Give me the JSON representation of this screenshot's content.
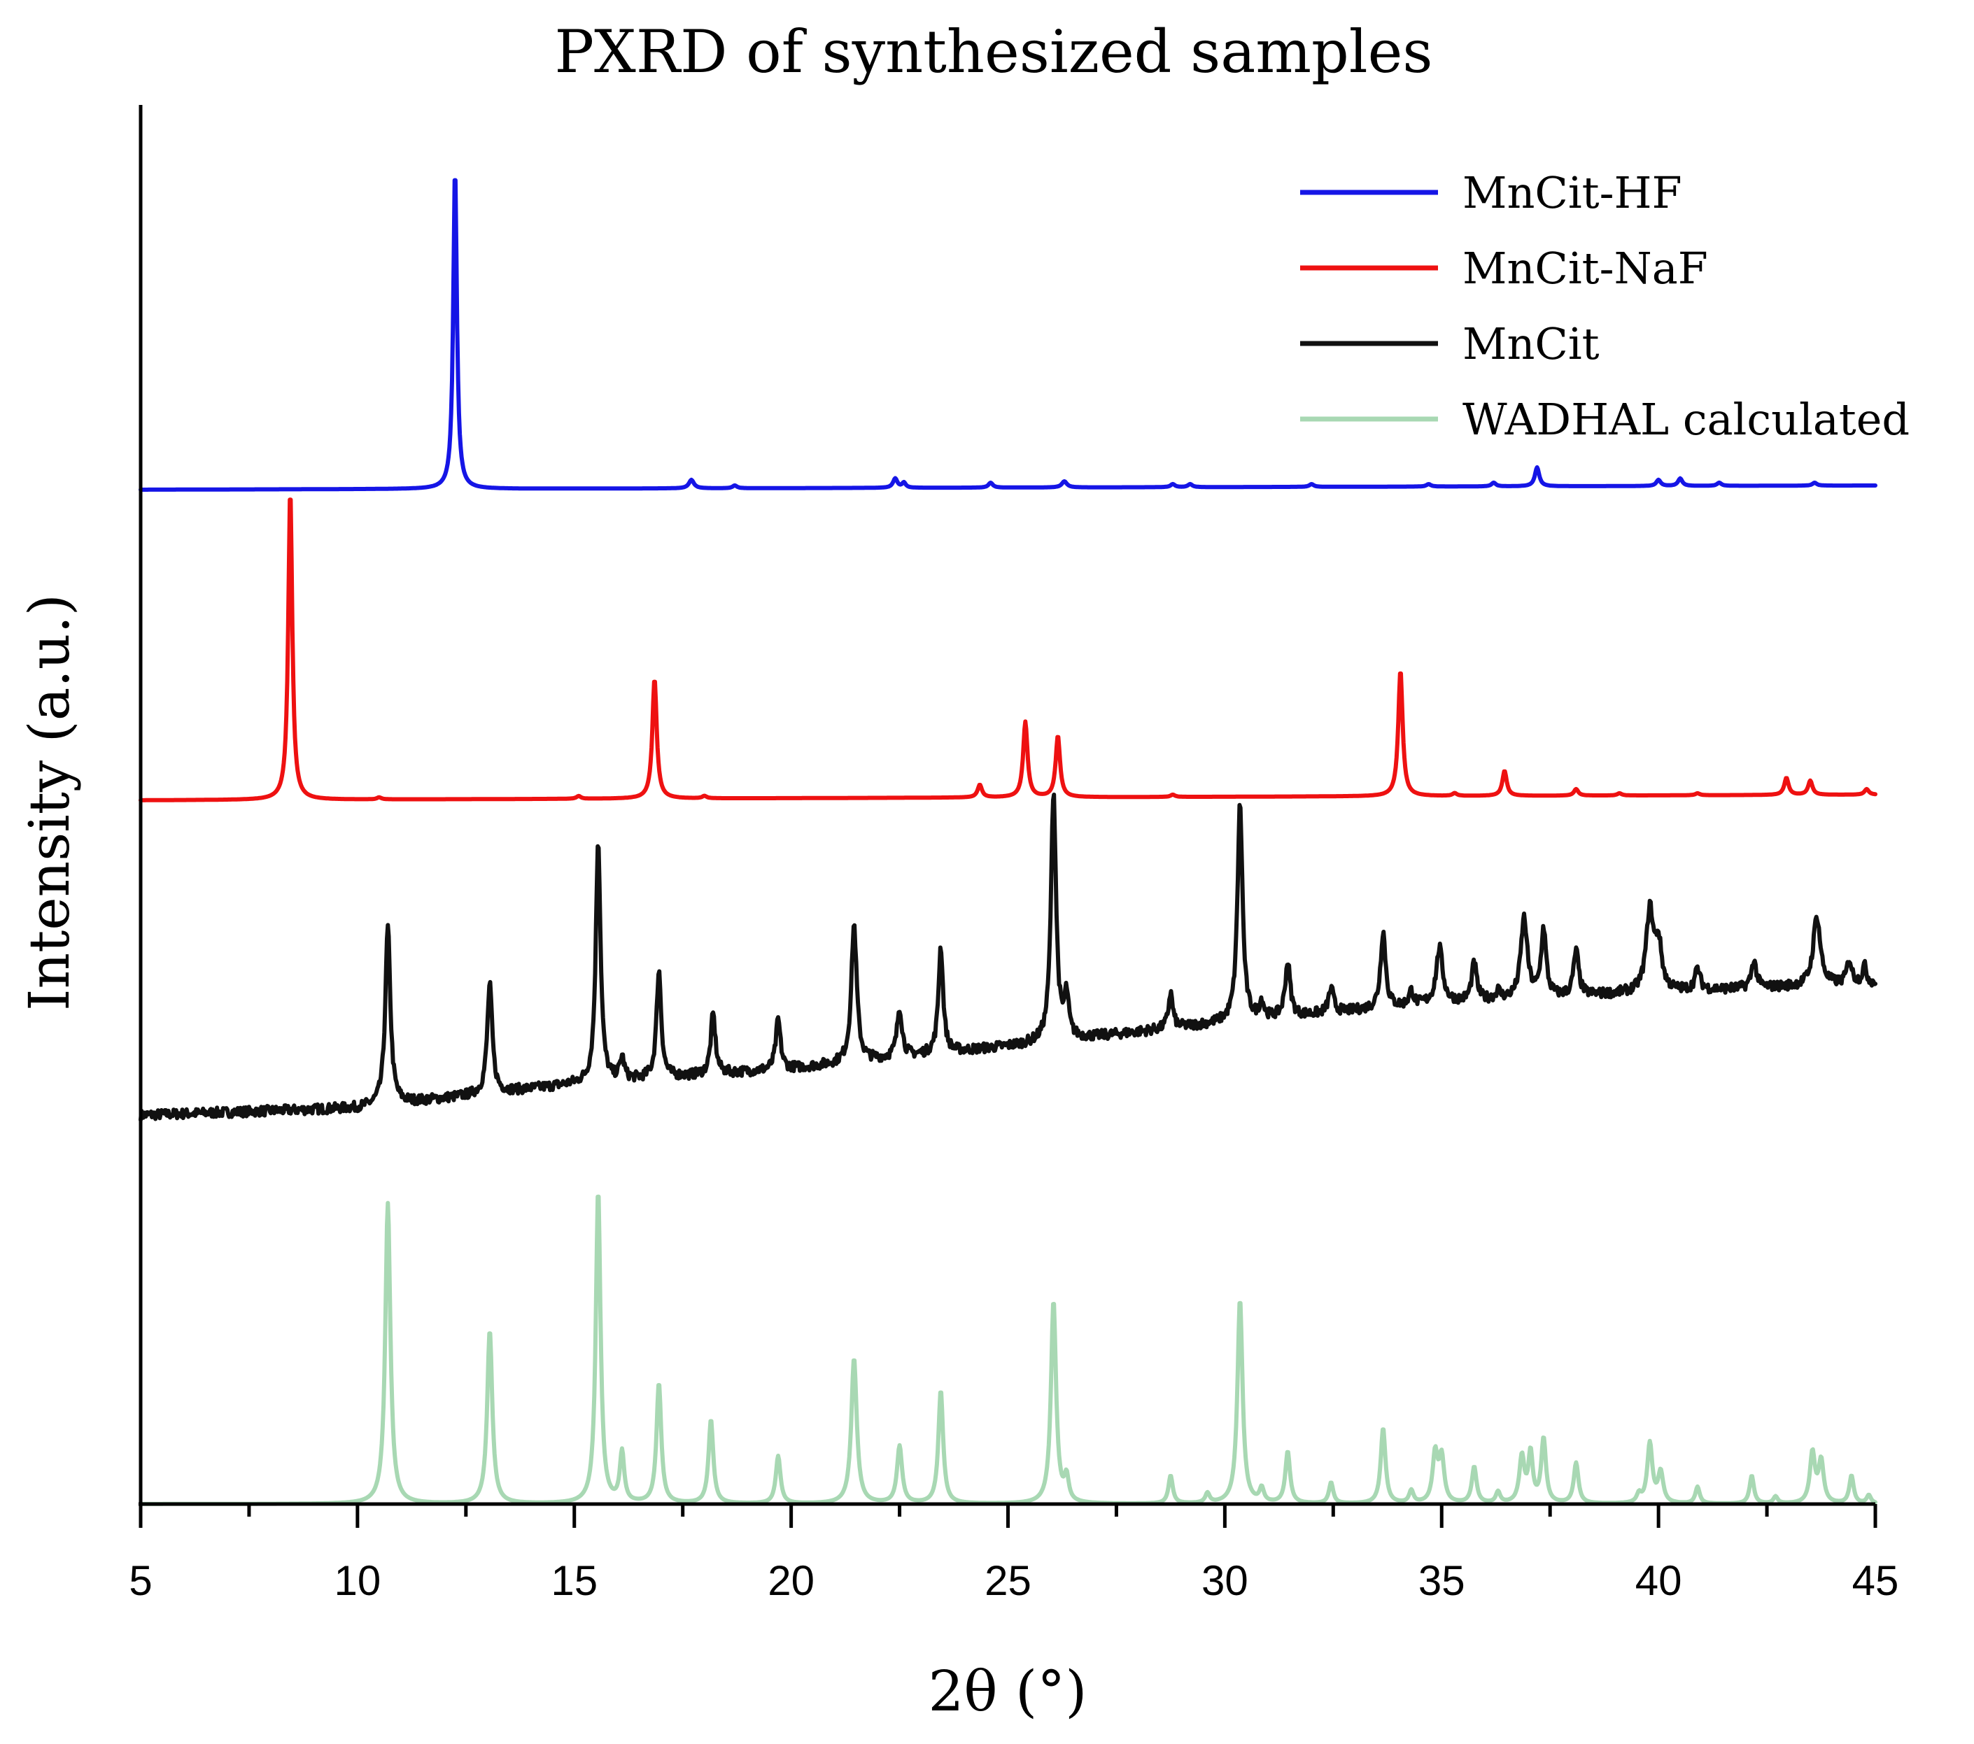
{
  "chart_data": {
    "type": "line",
    "title": "PXRD of synthesized samples",
    "xlabel": "2θ (°)",
    "ylabel": "Intensity (a.u.)",
    "xlim": [
      5,
      45
    ],
    "x_ticks": [
      5,
      10,
      15,
      20,
      25,
      30,
      35,
      40,
      45
    ],
    "y_ticks": [],
    "grid": false,
    "legend_position": "top-right",
    "ylim": [
      0,
      1
    ],
    "series": [
      {
        "name": "MnCit-HF",
        "color": "#1515e6",
        "baseline": [
          [
            5,
            0.725
          ],
          [
            45,
            0.728
          ]
        ],
        "peaks": [
          [
            12.25,
            0.955,
            0.05
          ],
          [
            17.7,
            0.732,
            0.07
          ],
          [
            18.7,
            0.728,
            0.06
          ],
          [
            22.4,
            0.733,
            0.06
          ],
          [
            22.6,
            0.73,
            0.05
          ],
          [
            24.6,
            0.73,
            0.06
          ],
          [
            26.3,
            0.731,
            0.07
          ],
          [
            28.8,
            0.729,
            0.06
          ],
          [
            29.2,
            0.729,
            0.06
          ],
          [
            32.0,
            0.729,
            0.06
          ],
          [
            34.7,
            0.729,
            0.06
          ],
          [
            36.2,
            0.73,
            0.06
          ],
          [
            37.2,
            0.741,
            0.06
          ],
          [
            40.0,
            0.732,
            0.06
          ],
          [
            40.5,
            0.733,
            0.06
          ],
          [
            41.4,
            0.73,
            0.06
          ],
          [
            43.6,
            0.73,
            0.06
          ]
        ]
      },
      {
        "name": "MnCit-NaF",
        "color": "#ee1111",
        "baseline": [
          [
            5,
            0.503
          ],
          [
            45,
            0.507
          ]
        ],
        "peaks": [
          [
            8.45,
            0.725,
            0.055
          ],
          [
            10.5,
            0.505,
            0.06
          ],
          [
            15.1,
            0.506,
            0.06
          ],
          [
            16.85,
            0.59,
            0.06
          ],
          [
            18.0,
            0.506,
            0.06
          ],
          [
            24.35,
            0.514,
            0.06
          ],
          [
            25.4,
            0.559,
            0.06
          ],
          [
            26.15,
            0.549,
            0.06
          ],
          [
            28.8,
            0.507,
            0.06
          ],
          [
            34.05,
            0.596,
            0.06
          ],
          [
            35.3,
            0.508,
            0.06
          ],
          [
            36.45,
            0.524,
            0.06
          ],
          [
            38.1,
            0.511,
            0.06
          ],
          [
            39.1,
            0.508,
            0.06
          ],
          [
            40.9,
            0.508,
            0.06
          ],
          [
            42.95,
            0.519,
            0.06
          ],
          [
            43.5,
            0.517,
            0.06
          ],
          [
            44.8,
            0.511,
            0.06
          ]
        ]
      },
      {
        "name": "MnCit",
        "color": "#111111",
        "noise": 0.0035,
        "baseline": [
          [
            5,
            0.278
          ],
          [
            10,
            0.283
          ],
          [
            15,
            0.3
          ],
          [
            20,
            0.311
          ],
          [
            25,
            0.327
          ],
          [
            30,
            0.344
          ],
          [
            35,
            0.358
          ],
          [
            40,
            0.366
          ],
          [
            45,
            0.372
          ]
        ],
        "peaks": [
          [
            10.7,
            0.412,
            0.07
          ],
          [
            13.05,
            0.371,
            0.07
          ],
          [
            15.55,
            0.475,
            0.065
          ],
          [
            16.1,
            0.318,
            0.06
          ],
          [
            16.95,
            0.381,
            0.065
          ],
          [
            18.2,
            0.35,
            0.065
          ],
          [
            19.7,
            0.346,
            0.065
          ],
          [
            21.45,
            0.414,
            0.075
          ],
          [
            22.5,
            0.354,
            0.07
          ],
          [
            23.45,
            0.398,
            0.065
          ],
          [
            26.05,
            0.509,
            0.07
          ],
          [
            26.35,
            0.361,
            0.06
          ],
          [
            28.75,
            0.365,
            0.06
          ],
          [
            30.35,
            0.5,
            0.07
          ],
          [
            30.85,
            0.358,
            0.06
          ],
          [
            31.45,
            0.387,
            0.07
          ],
          [
            32.45,
            0.368,
            0.07
          ],
          [
            33.65,
            0.409,
            0.07
          ],
          [
            34.3,
            0.366,
            0.06
          ],
          [
            34.95,
            0.397,
            0.09
          ],
          [
            35.75,
            0.386,
            0.07
          ],
          [
            36.3,
            0.366,
            0.06
          ],
          [
            36.9,
            0.418,
            0.09
          ],
          [
            37.35,
            0.41,
            0.07
          ],
          [
            38.1,
            0.395,
            0.07
          ],
          [
            39.8,
            0.423,
            0.1
          ],
          [
            40.0,
            0.398,
            0.09
          ],
          [
            40.9,
            0.382,
            0.07
          ],
          [
            42.2,
            0.388,
            0.07
          ],
          [
            43.65,
            0.42,
            0.1
          ],
          [
            44.4,
            0.388,
            0.07
          ],
          [
            44.75,
            0.384,
            0.06
          ]
        ]
      },
      {
        "name": "WADHAL calculated",
        "color": "#a8d8b3",
        "baseline": [
          [
            5,
            0.0
          ],
          [
            45,
            0.0
          ]
        ],
        "peaks": [
          [
            10.7,
            0.215,
            0.07
          ],
          [
            13.05,
            0.124,
            0.07
          ],
          [
            15.55,
            0.224,
            0.065
          ],
          [
            16.1,
            0.036,
            0.06
          ],
          [
            16.95,
            0.086,
            0.065
          ],
          [
            18.15,
            0.06,
            0.065
          ],
          [
            19.7,
            0.034,
            0.065
          ],
          [
            21.45,
            0.104,
            0.075
          ],
          [
            22.5,
            0.041,
            0.07
          ],
          [
            23.45,
            0.081,
            0.065
          ],
          [
            26.05,
            0.145,
            0.07
          ],
          [
            26.35,
            0.017,
            0.06
          ],
          [
            28.75,
            0.02,
            0.06
          ],
          [
            29.6,
            0.007,
            0.06
          ],
          [
            30.35,
            0.146,
            0.07
          ],
          [
            30.85,
            0.01,
            0.06
          ],
          [
            31.45,
            0.037,
            0.065
          ],
          [
            32.45,
            0.015,
            0.06
          ],
          [
            33.65,
            0.054,
            0.065
          ],
          [
            34.3,
            0.009,
            0.06
          ],
          [
            34.85,
            0.035,
            0.07
          ],
          [
            35.0,
            0.032,
            0.07
          ],
          [
            35.75,
            0.026,
            0.065
          ],
          [
            36.3,
            0.008,
            0.06
          ],
          [
            36.85,
            0.033,
            0.07
          ],
          [
            37.05,
            0.035,
            0.06
          ],
          [
            37.35,
            0.046,
            0.065
          ],
          [
            38.1,
            0.029,
            0.065
          ],
          [
            39.55,
            0.006,
            0.06
          ],
          [
            39.8,
            0.043,
            0.07
          ],
          [
            40.05,
            0.022,
            0.07
          ],
          [
            40.9,
            0.012,
            0.06
          ],
          [
            42.15,
            0.02,
            0.06
          ],
          [
            42.7,
            0.005,
            0.06
          ],
          [
            43.55,
            0.036,
            0.07
          ],
          [
            43.75,
            0.03,
            0.07
          ],
          [
            44.45,
            0.02,
            0.06
          ],
          [
            44.85,
            0.006,
            0.06
          ]
        ]
      }
    ]
  }
}
